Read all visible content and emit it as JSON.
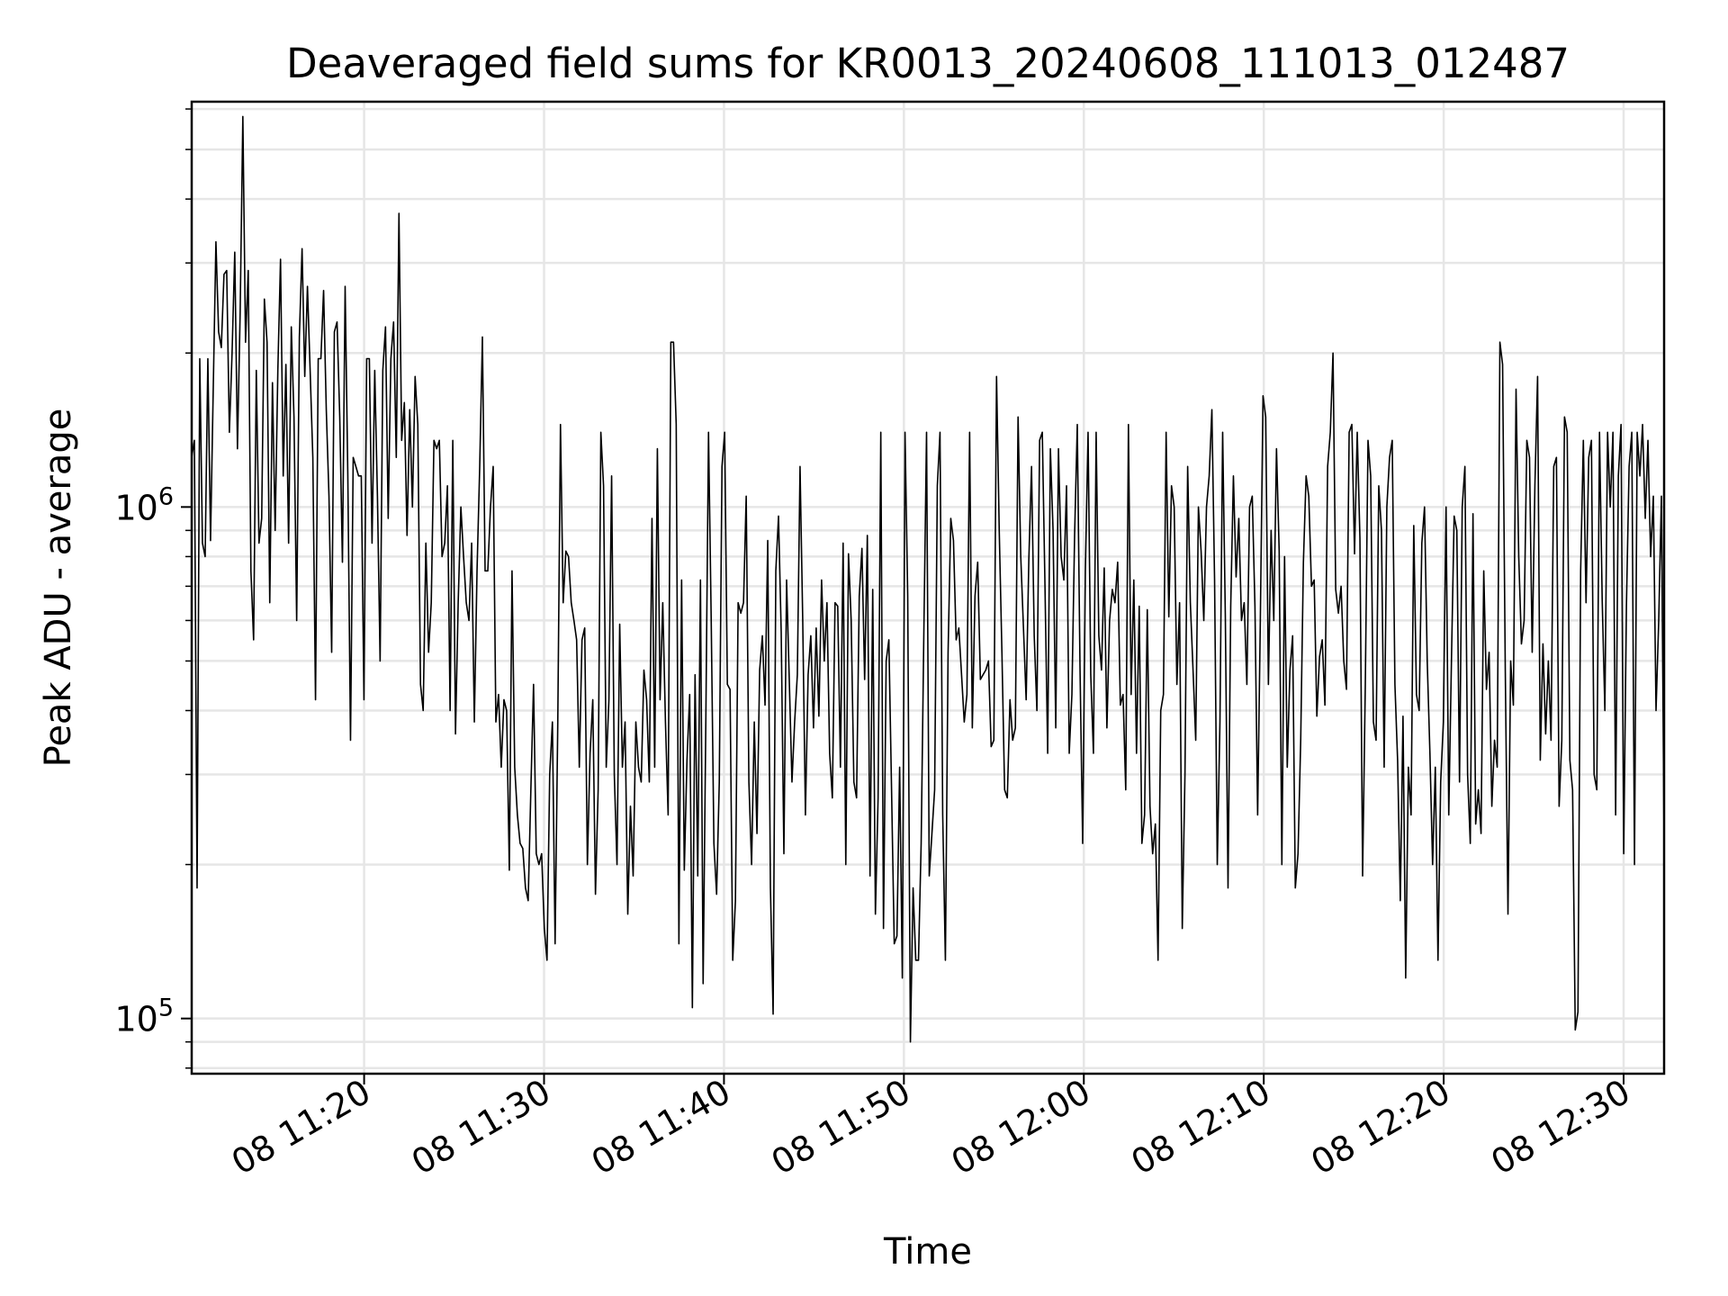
{
  "chart_data": {
    "type": "line",
    "title": "Deaveraged field sums for KR0013_20240608_111013_012487",
    "xlabel": "Time",
    "ylabel": "Peak ADU - average",
    "yscale": "log",
    "ylim": [
      78000,
      6200000
    ],
    "xlim": [
      "2024-06-08 11:10:25",
      "2024-06-08 12:32:15"
    ],
    "x_tick_labels": [
      "08 11:20",
      "08 11:30",
      "08 11:40",
      "08 11:50",
      "08 12:00",
      "08 12:10",
      "08 12:20",
      "08 12:30"
    ],
    "x_tick_times": [
      "2024-06-08 11:20:00",
      "2024-06-08 11:30:00",
      "2024-06-08 11:40:00",
      "2024-06-08 11:50:00",
      "2024-06-08 12:00:00",
      "2024-06-08 12:10:00",
      "2024-06-08 12:20:00",
      "2024-06-08 12:30:00"
    ],
    "y_tick_labels": [
      {
        "value": 100000,
        "base": "10",
        "exp": "5"
      },
      {
        "value": 1000000,
        "base": "10",
        "exp": "6"
      }
    ],
    "grid": true,
    "line_color": "#000000",
    "grid_color": "#e6e6e6",
    "series": [
      {
        "x_start": "2024-06-08 11:10:25",
        "x_end": "2024-06-08 12:32:15",
        "values": [
          1250000,
          1350000,
          180000,
          1950000,
          850000,
          800000,
          1950000,
          860000,
          1700000,
          3300000,
          2200000,
          2050000,
          2850000,
          2900000,
          1400000,
          2000000,
          3150000,
          1300000,
          2400000,
          5800000,
          2100000,
          2900000,
          750000,
          550000,
          1850000,
          850000,
          950000,
          2550000,
          2100000,
          650000,
          1750000,
          900000,
          1850000,
          3050000,
          1150000,
          1900000,
          850000,
          2250000,
          1500000,
          600000,
          2150000,
          3200000,
          1800000,
          2700000,
          1850000,
          1250000,
          420000,
          1950000,
          1950000,
          2650000,
          1550000,
          1050000,
          520000,
          2200000,
          2300000,
          1500000,
          780000,
          2700000,
          1150000,
          350000,
          1250000,
          1200000,
          1150000,
          1150000,
          420000,
          1950000,
          1950000,
          850000,
          1850000,
          1050000,
          500000,
          1850000,
          2250000,
          950000,
          1950000,
          2300000,
          1250000,
          3750000,
          1350000,
          1600000,
          880000,
          1550000,
          1000000,
          1800000,
          1450000,
          450000,
          400000,
          850000,
          520000,
          650000,
          1350000,
          1300000,
          1350000,
          800000,
          850000,
          1100000,
          400000,
          1350000,
          360000,
          650000,
          1000000,
          800000,
          650000,
          600000,
          850000,
          380000,
          750000,
          1200000,
          2150000,
          750000,
          750000,
          1000000,
          1200000,
          380000,
          430000,
          310000,
          420000,
          400000,
          195000,
          750000,
          310000,
          250000,
          220000,
          215000,
          180000,
          170000,
          280000,
          450000,
          210000,
          200000,
          210000,
          150000,
          130000,
          300000,
          380000,
          140000,
          380000,
          1450000,
          650000,
          820000,
          800000,
          650000,
          600000,
          550000,
          310000,
          550000,
          580000,
          200000,
          330000,
          420000,
          175000,
          280000,
          1400000,
          1100000,
          310000,
          420000,
          1150000,
          300000,
          200000,
          590000,
          310000,
          380000,
          160000,
          260000,
          190000,
          380000,
          310000,
          290000,
          480000,
          420000,
          290000,
          950000,
          310000,
          1300000,
          420000,
          650000,
          380000,
          250000,
          2100000,
          2100000,
          1450000,
          140000,
          720000,
          195000,
          320000,
          430000,
          105000,
          470000,
          190000,
          720000,
          117000,
          380000,
          1400000,
          600000,
          220000,
          175000,
          290000,
          1200000,
          1400000,
          450000,
          440000,
          130000,
          170000,
          650000,
          620000,
          650000,
          1050000,
          290000,
          200000,
          380000,
          230000,
          480000,
          560000,
          410000,
          860000,
          180000,
          102000,
          750000,
          960000,
          570000,
          210000,
          720000,
          460000,
          290000,
          380000,
          470000,
          1200000,
          600000,
          250000,
          470000,
          560000,
          370000,
          580000,
          390000,
          720000,
          500000,
          650000,
          330000,
          270000,
          650000,
          640000,
          310000,
          850000,
          200000,
          810000,
          600000,
          290000,
          270000,
          670000,
          830000,
          460000,
          880000,
          190000,
          690000,
          160000,
          270000,
          1400000,
          150000,
          500000,
          550000,
          280000,
          140000,
          145000,
          310000,
          120000,
          1400000,
          670000,
          90000,
          180000,
          130000,
          130000,
          220000,
          570000,
          1400000,
          190000,
          230000,
          280000,
          1100000,
          1400000,
          250000,
          130000,
          520000,
          950000,
          860000,
          550000,
          580000,
          470000,
          380000,
          430000,
          1400000,
          370000,
          670000,
          780000,
          460000,
          470000,
          480000,
          500000,
          340000,
          350000,
          1800000,
          900000,
          520000,
          280000,
          270000,
          420000,
          350000,
          370000,
          1500000,
          800000,
          580000,
          420000,
          790000,
          1200000,
          560000,
          400000,
          1350000,
          1400000,
          700000,
          330000,
          1300000,
          900000,
          370000,
          1300000,
          800000,
          720000,
          1100000,
          330000,
          430000,
          880000,
          1450000,
          490000,
          220000,
          750000,
          1400000,
          470000,
          330000,
          1400000,
          560000,
          480000,
          760000,
          370000,
          600000,
          690000,
          650000,
          780000,
          410000,
          430000,
          280000,
          1450000,
          430000,
          720000,
          330000,
          640000,
          220000,
          250000,
          630000,
          260000,
          210000,
          240000,
          130000,
          400000,
          430000,
          1400000,
          610000,
          1100000,
          1000000,
          450000,
          650000,
          150000,
          300000,
          1200000,
          650000,
          480000,
          350000,
          1000000,
          820000,
          600000,
          1000000,
          1150000,
          1550000,
          720000,
          200000,
          380000,
          1400000,
          610000,
          180000,
          640000,
          1150000,
          730000,
          950000,
          600000,
          650000,
          450000,
          1000000,
          1050000,
          640000,
          250000,
          600000,
          1650000,
          1500000,
          450000,
          900000,
          600000,
          1300000,
          820000,
          200000,
          800000,
          310000,
          480000,
          560000,
          180000,
          210000,
          350000,
          780000,
          1150000,
          1050000,
          700000,
          720000,
          390000,
          510000,
          550000,
          410000,
          1200000,
          1400000,
          2000000,
          690000,
          620000,
          700000,
          500000,
          440000,
          1400000,
          1450000,
          810000,
          1400000,
          870000,
          190000,
          450000,
          1350000,
          1150000,
          380000,
          350000,
          1100000,
          900000,
          310000,
          1000000,
          1250000,
          1350000,
          450000,
          320000,
          170000,
          390000,
          120000,
          310000,
          250000,
          920000,
          430000,
          400000,
          850000,
          1000000,
          500000,
          330000,
          200000,
          310000,
          130000,
          290000,
          380000,
          1000000,
          250000,
          500000,
          960000,
          900000,
          290000,
          1000000,
          1200000,
          300000,
          220000,
          970000,
          240000,
          280000,
          230000,
          750000,
          440000,
          520000,
          260000,
          350000,
          310000,
          2100000,
          1900000,
          480000,
          160000,
          500000,
          410000,
          1700000,
          800000,
          540000,
          600000,
          1350000,
          1250000,
          520000,
          1100000,
          1800000,
          320000,
          540000,
          360000,
          500000,
          350000,
          1200000,
          1250000,
          260000,
          350000,
          1500000,
          1400000,
          320000,
          280000,
          95000,
          103000,
          750000,
          1350000,
          650000,
          1250000,
          1350000,
          300000,
          280000,
          1400000,
          660000,
          400000,
          1400000,
          1000000,
          1400000,
          250000,
          1150000,
          1450000,
          210000,
          640000,
          1200000,
          1400000,
          200000,
          1400000,
          1150000,
          1450000,
          950000,
          1350000,
          800000,
          1050000,
          400000,
          600000,
          1050000,
          220000
        ]
      }
    ]
  }
}
